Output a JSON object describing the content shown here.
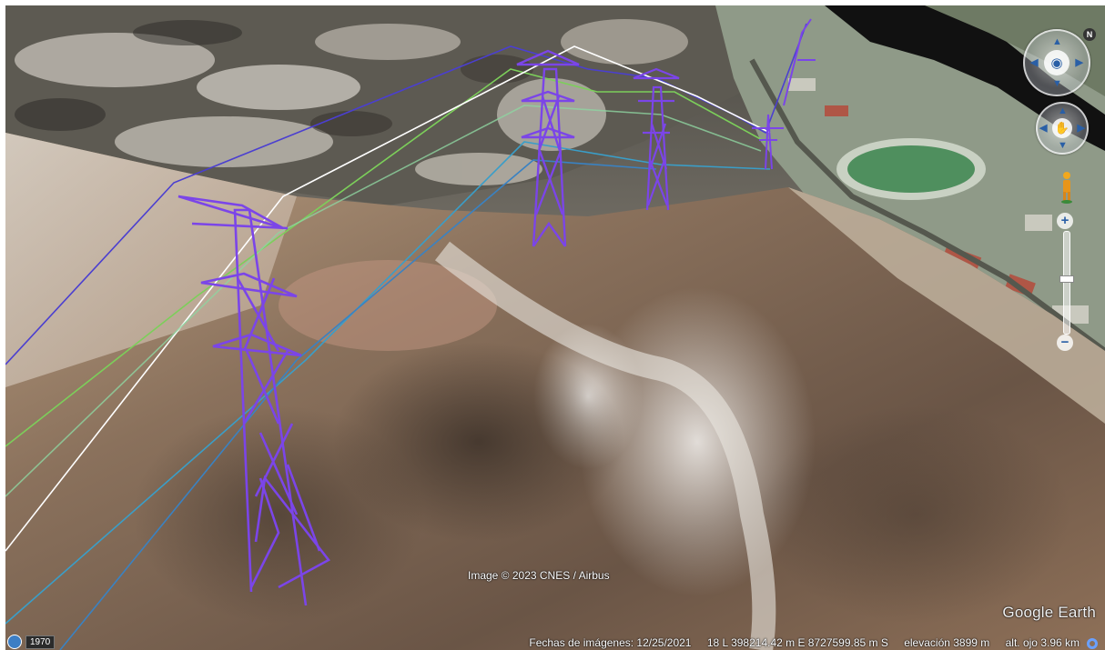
{
  "imagery": {
    "credit": "Image © 2023 CNES / Airbus",
    "brand": "Google Earth"
  },
  "status": {
    "imagery_date": "Fechas de imágenes: 12/25/2021",
    "coordinates": "18 L 398214.42 m E 8727599.85 m S",
    "elevation": "elevación  3899 m",
    "eye_altitude": "alt. ojo  3.96 km"
  },
  "historical": {
    "year": "1970"
  },
  "navigation": {
    "north_label": "N",
    "zoom_in_label": "+",
    "zoom_out_label": "−",
    "zoom_level": 0.55
  },
  "colors": {
    "tower": "#7b45e8",
    "line_blue": "#4b3fd0",
    "line_green": "#7ccf5a",
    "line_white": "#ffffff",
    "line_teal": "#3a9ec8"
  },
  "icons": [
    "eye-icon",
    "hand-icon",
    "pegman-icon",
    "history-icon",
    "loading-icon"
  ]
}
